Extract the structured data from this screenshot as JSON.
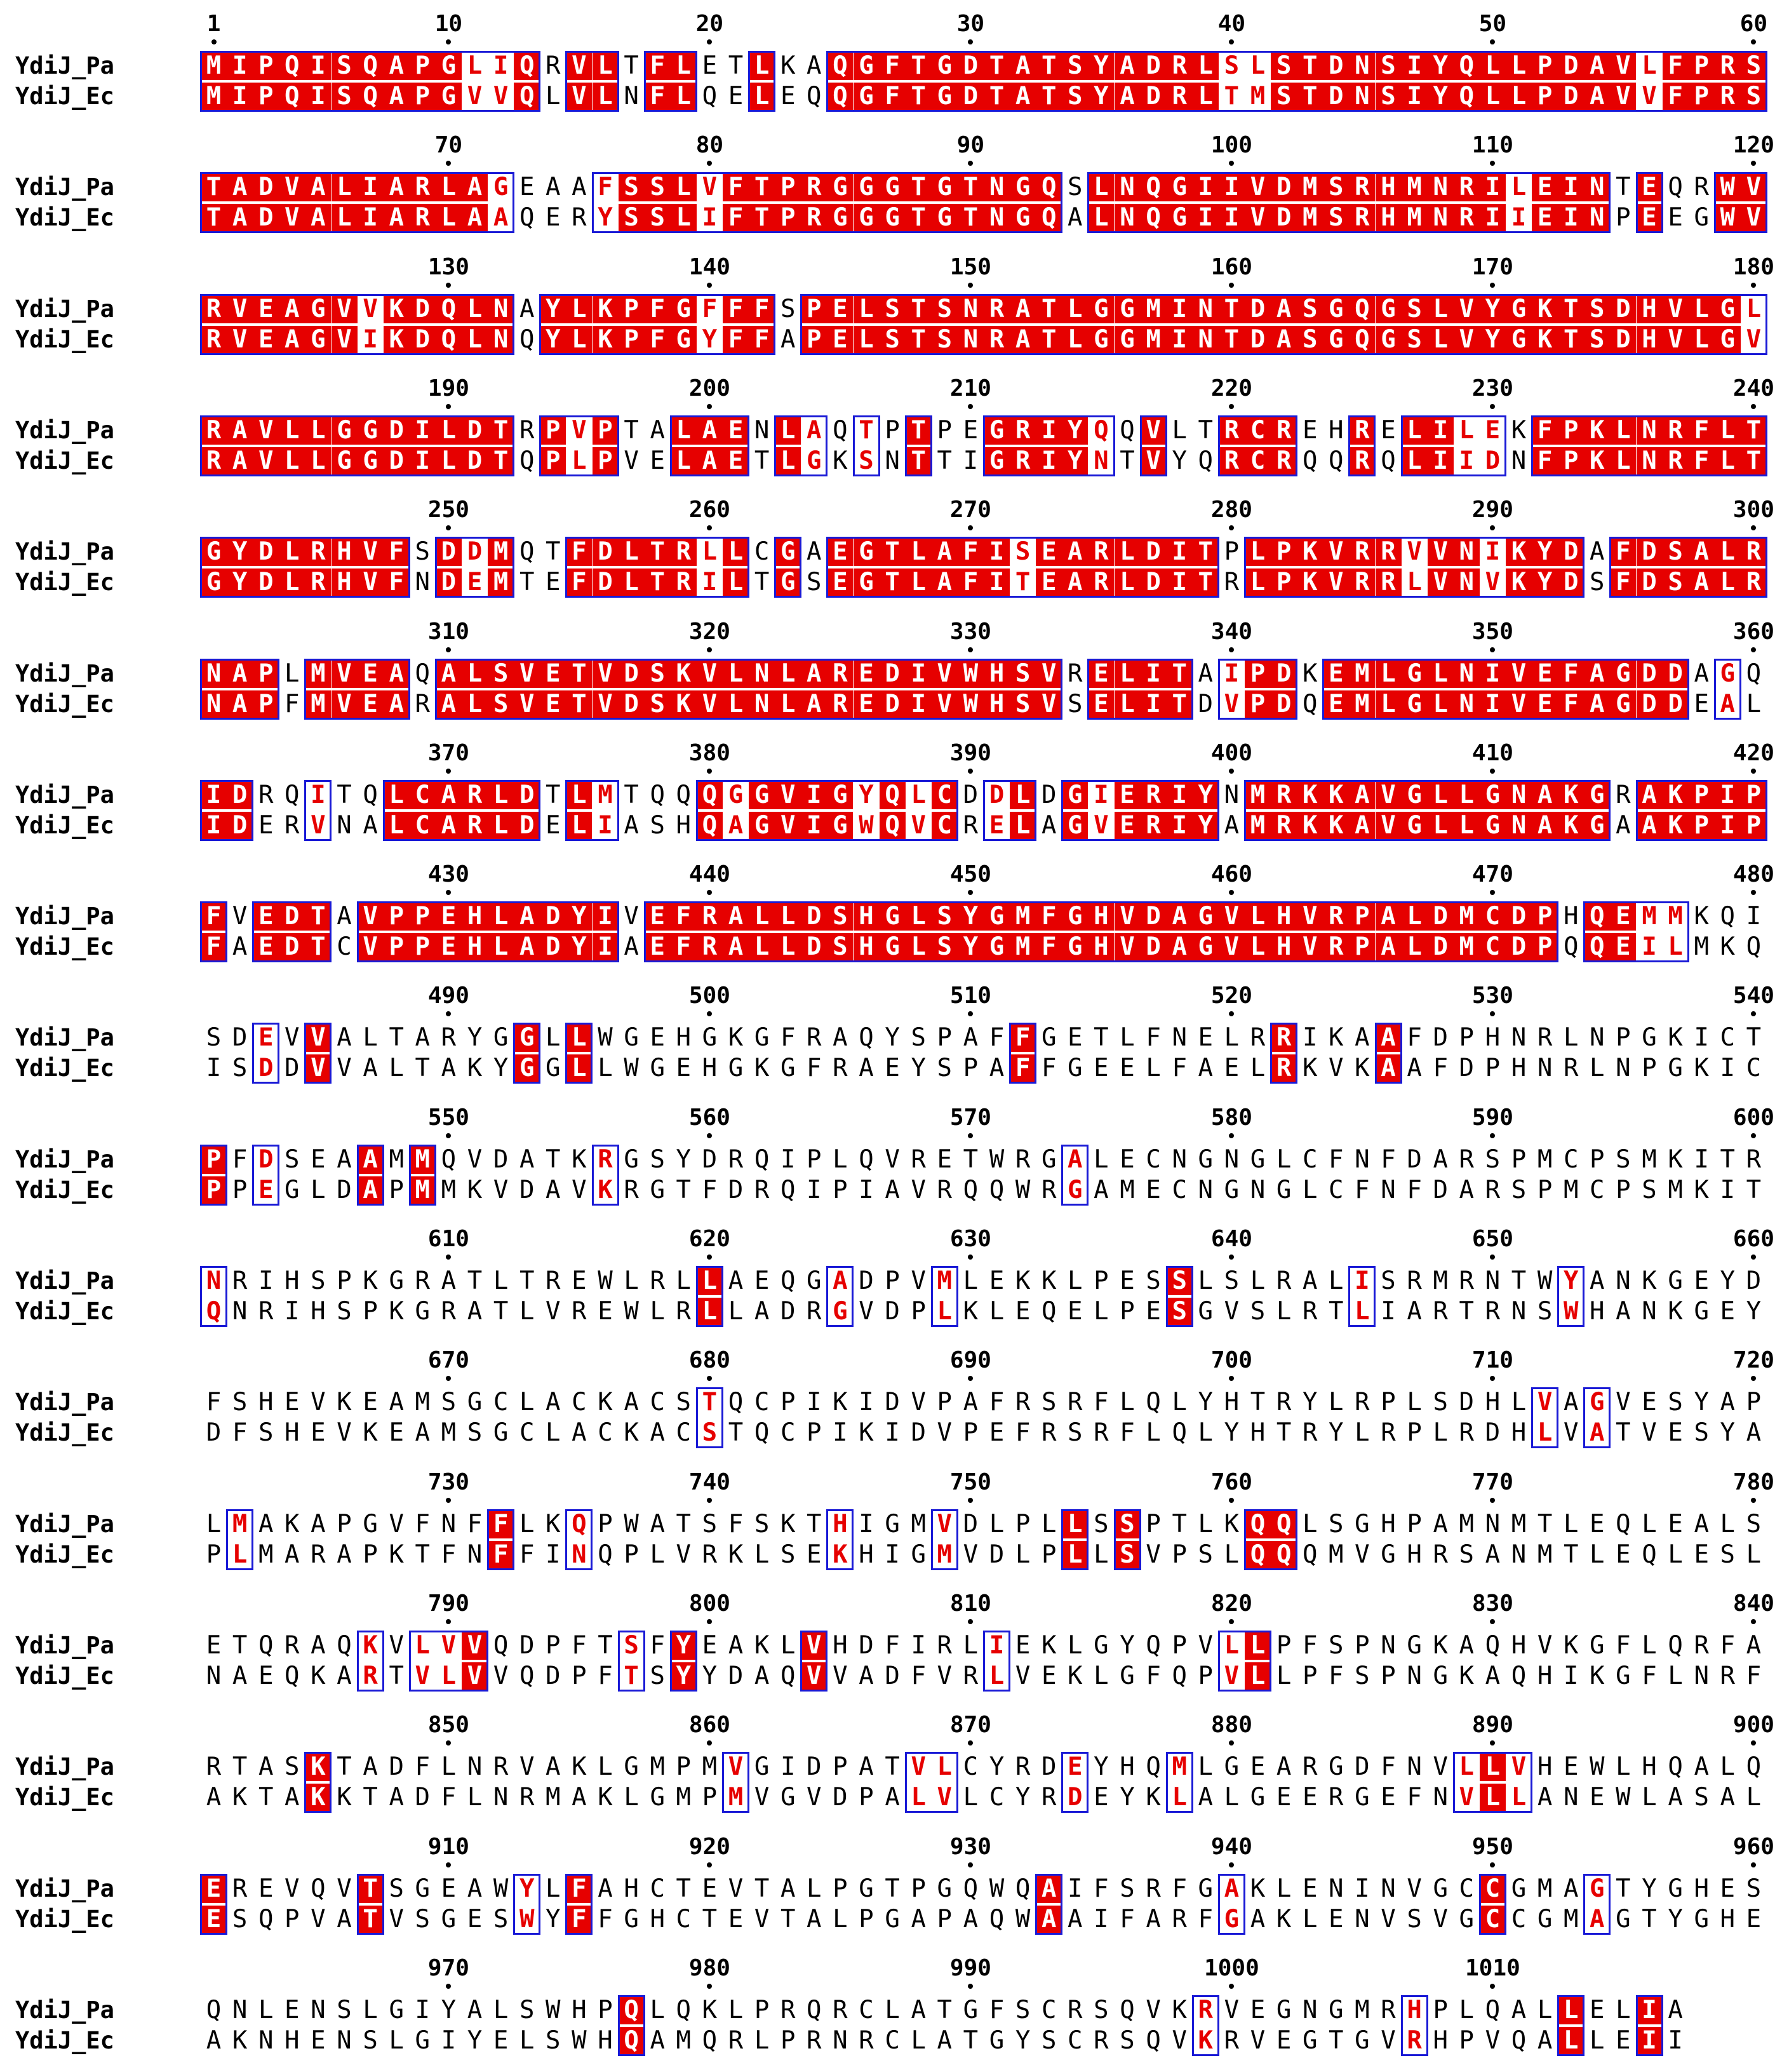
{
  "figure": {
    "names": [
      "YdiJ_Pa",
      "YdiJ_Ec"
    ],
    "line_length": 60,
    "seq_a": "MIPQISQAPGLIQRVLTFLETLKAQGFTGDTATSYADRLSLSTDNSIYQLLPDAVLFPRSTADVALIARLAGEAAFSSLVFTPRGGGTGTNGQSLNQGIIVDMSRHMNRILEINTEQRWVRVEAGVVKDQLNAYLKPFGFFFSPELSTSNRATLGGMINTDASGQGSLVYGKTSDHVLGLRAVLLGGDILDTRPVPTALAENLAQTPTPEGRIYQQVLTRCREHRELILEKFPKLNRFLTGYDLRHVFSDDMQTFDLTRLLCGAEGTLAFISEARLDITPLPKVRRVVNIKYDAFDSALRNAPLMVEAQALSVETVDSKVLNLAREDIVWHSVRELITAIPDKEMLGLNIVEFAGDDAGQIDRQITQLCARLDTLMTQQQGGVIGYQLCDDLDGIERIYNMRKKAVGLLGNAKGRAKPIPFVEDTAVPPEHLADYIVEFRALLDSHGLSYGMFGHVDAGVLHVRPALDMCDPHQEMMKQISDEVVALTARYGGLLWGEHGKGFRAQYSPAFFGETLFNELRRIKAAFDPHNRLNPGKICTPFDSEAAMMQVDATKRGSYDRQIPLQVRETWRGALECNGNGLCFNFDARSPMCPSMKITRNRIHSPKGRATLTREWLRLLAEQGADPVMLEKKLPESSLSLRALISRMRNTWYANKGEYDFSHEVKEAMSGCLACKACSTQCPIKIDVPAFRSRFLQLYHTRYLRPLSDHLVAGVESYAPLMAKAPGVFNFFLKQPWATSFSKTHIGMVDLPLLSSPTLKQQLSGHPAMNMTLEQLEALSETQRAQKVLVVQDPFTSFYEAKLVHDFIRLIEKLGYQPVLLPFSPNGKAQHVKGFLQRFARTASKTADFLNRVAKLGMPMVGIDPATVLCYRDEYHQMLGEARGDFNVLLVHEWLHQALQEREVQVTSGEAWYLFAHCTEVTALPGTPGQWQAIFSRFGAKLENINVGCCGMAGTYGHESQNLENSLGIYALSWHPQLQKLPRQRCLATGFSCRSQVKRVEGNGMRHPLQALLELIA",
    "seq_b": "MIPQISQAPGVVQLVLNFLQELEQQGFTGDTATSYADRLTMSTDNSIYQLLPDAVVFPRSTADVALIARLAAQERYSSLIFTPRGGGTGTNGQALNQGIIVDMSRHMNRIIEINPEEGWVRVEAGVIKDQLNQYLKPFGYFFAPELSTSNRATLGGMINTDASGQGSLVYGKTSDHVLGVRAVLLGGDILDTQPLPVELAETLGKSNTTIGRIYNTVYQRCRQQRQLIIDNFPKLNRFLTGYDLRHVFNDEMTEFDLTRILTGSEGTLAFITEARLDITRLPKVRRLVNVKYDSFDSALRNAPFMVEARALSVETVDSKVLNLAREDIVWHSVSELITDVPDQEMLGLNIVEFAGDDEALIDERVNALCARLDELIASHQAGVIGWQVCRELAGVERIYAMRKKAVGLLGNAKGAAKPIPFAEDTCVPPEHLADYIAEFRALLDSHGLSYGMFGHVDAGVLHVRPALDMCDPQQEILMKQISDDVVALTAKYGGLLWGEHGKGFRAEYSPAFFGEELFAELRKVKAAFDPHNRLNPGKICPPEGLDAPMMKVDAVKRGTFDRQIPIAVRQQWRGAMECNGNGLCFNFDARSPMCPSMKITQNRIHSPKGRATLVREWLRLLADRGVDPLKLEQELPESGVSLRTLIARTRNSWHANKGEYDFSHEVKEAMSGCLACKACSTQCPIKIDVPEFRSRFLQLYHTRYLRPLRDHLVATVESYAPLMARAPKTFNFFINQPLVRKLSEKHIGMVDLPLLSVPSLQQQMVGHRSANMTLEQLESLNAEQKARTVLVVQDPFTSYYDAQVVADFVRLVEKLGFQPVLLPFSPNGKAQHIKGFLNRFAKTAKKTADFLNRMAKLGMPMVGVDPALVLCYRDEYKLALGEERGEFNVLLANEWLASALESQPVATVSGESWYFFGHCTEVTALPGAPAQWAAIFARFGAKLENVSVGCCGMAGTYGHEAKNHENSLGIYELSWHQAMQRLPRNRCLATGYSCRSQVKRVEGTGVRHPVQALLEIIK",
    "tick_labels": [
      "1",
      "10",
      "20",
      "30",
      "40",
      "50",
      "60",
      "70",
      "80",
      "90",
      "100",
      "110",
      "120",
      "130",
      "140",
      "150",
      "160",
      "170",
      "180",
      "190",
      "200",
      "210",
      "220",
      "230",
      "240",
      "250",
      "260",
      "270",
      "280",
      "290",
      "300",
      "310",
      "320",
      "330",
      "340",
      "350",
      "360",
      "370",
      "380",
      "390",
      "400",
      "410",
      "420",
      "430",
      "440",
      "450",
      "460",
      "470",
      "480",
      "490",
      "500",
      "510",
      "520",
      "530",
      "540",
      "550",
      "560",
      "570",
      "580",
      "590",
      "600",
      "610",
      "620",
      "630",
      "640",
      "650",
      "660",
      "670",
      "680",
      "690",
      "700",
      "710",
      "720",
      "730",
      "740",
      "750",
      "760",
      "770",
      "780",
      "790",
      "800",
      "810",
      "820",
      "830",
      "840",
      "850",
      "860",
      "870",
      "880",
      "890",
      "900",
      "910",
      "920",
      "930",
      "940",
      "950",
      "960",
      "970",
      "980",
      "990",
      "1000",
      "1010"
    ],
    "colors": {
      "identical_bg": "#e60000",
      "identical_text": "#ffffff",
      "similar_text": "#e60000",
      "frame": "#1a1ad6"
    },
    "similar_groups": [
      "ILMV",
      "FWY",
      "KRH",
      "DE",
      "NQ",
      "ST",
      "AG"
    ]
  }
}
